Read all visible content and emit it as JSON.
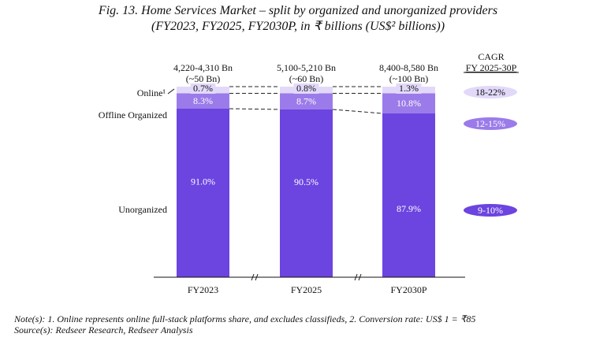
{
  "title_line1": "Fig. 13. Home Services Market – split by organized and unorganized providers",
  "title_line2": "(FY2023, FY2025, FY2030P, in ₹ billions (US$² billions))",
  "notes": "Note(s): 1. Online represents online full-stack platforms share, and excludes classifieds, 2. Conversion rate: US$ 1 = ₹85",
  "source": "Source(s): Redseer Research, Redseer Analysis",
  "colors": {
    "online": "#E2D9F9",
    "offline": "#9B7BE9",
    "unorganized": "#6C44E0",
    "cagr_online": "#E2D9F9",
    "cagr_offline": "#9B7BE9",
    "cagr_unorganized": "#6C44E0"
  },
  "chart_data": {
    "type": "bar",
    "stacked": true,
    "normalized_percent": true,
    "title": "Fig. 13. Home Services Market – split by organized and unorganized providers (FY2023, FY2025, FY2030P, in ₹ billions (US$² billions))",
    "categories": [
      "FY2023",
      "FY2025",
      "FY2030P"
    ],
    "totals": [
      "4,220-4,310 Bn",
      "5,100-5,210 Bn",
      "8,400-8,580 Bn"
    ],
    "totals_usd": [
      "(~50 Bn)",
      "(~60 Bn)",
      "(~100 Bn)"
    ],
    "series": [
      {
        "name": "Unorganized",
        "values": [
          91.0,
          90.5,
          87.9
        ],
        "labels": [
          "91.0%",
          "90.5%",
          "87.9%"
        ]
      },
      {
        "name": "Offline Organized",
        "values": [
          8.3,
          8.7,
          10.8
        ],
        "labels": [
          "8.3%",
          "8.7%",
          "10.8%"
        ]
      },
      {
        "name": "Online¹",
        "values": [
          0.7,
          0.8,
          1.3
        ],
        "labels": [
          "0.7%",
          "0.8%",
          "1.3%"
        ]
      }
    ],
    "cagr": {
      "header": "CAGR",
      "subheader": "FY 2025-30P",
      "values": {
        "Online¹": "18-22%",
        "Offline Organized": "12-15%",
        "Unorganized": "9-10%"
      }
    },
    "axis_breaks": true,
    "ylim": [
      0,
      100
    ],
    "xlabel": "",
    "ylabel": ""
  }
}
